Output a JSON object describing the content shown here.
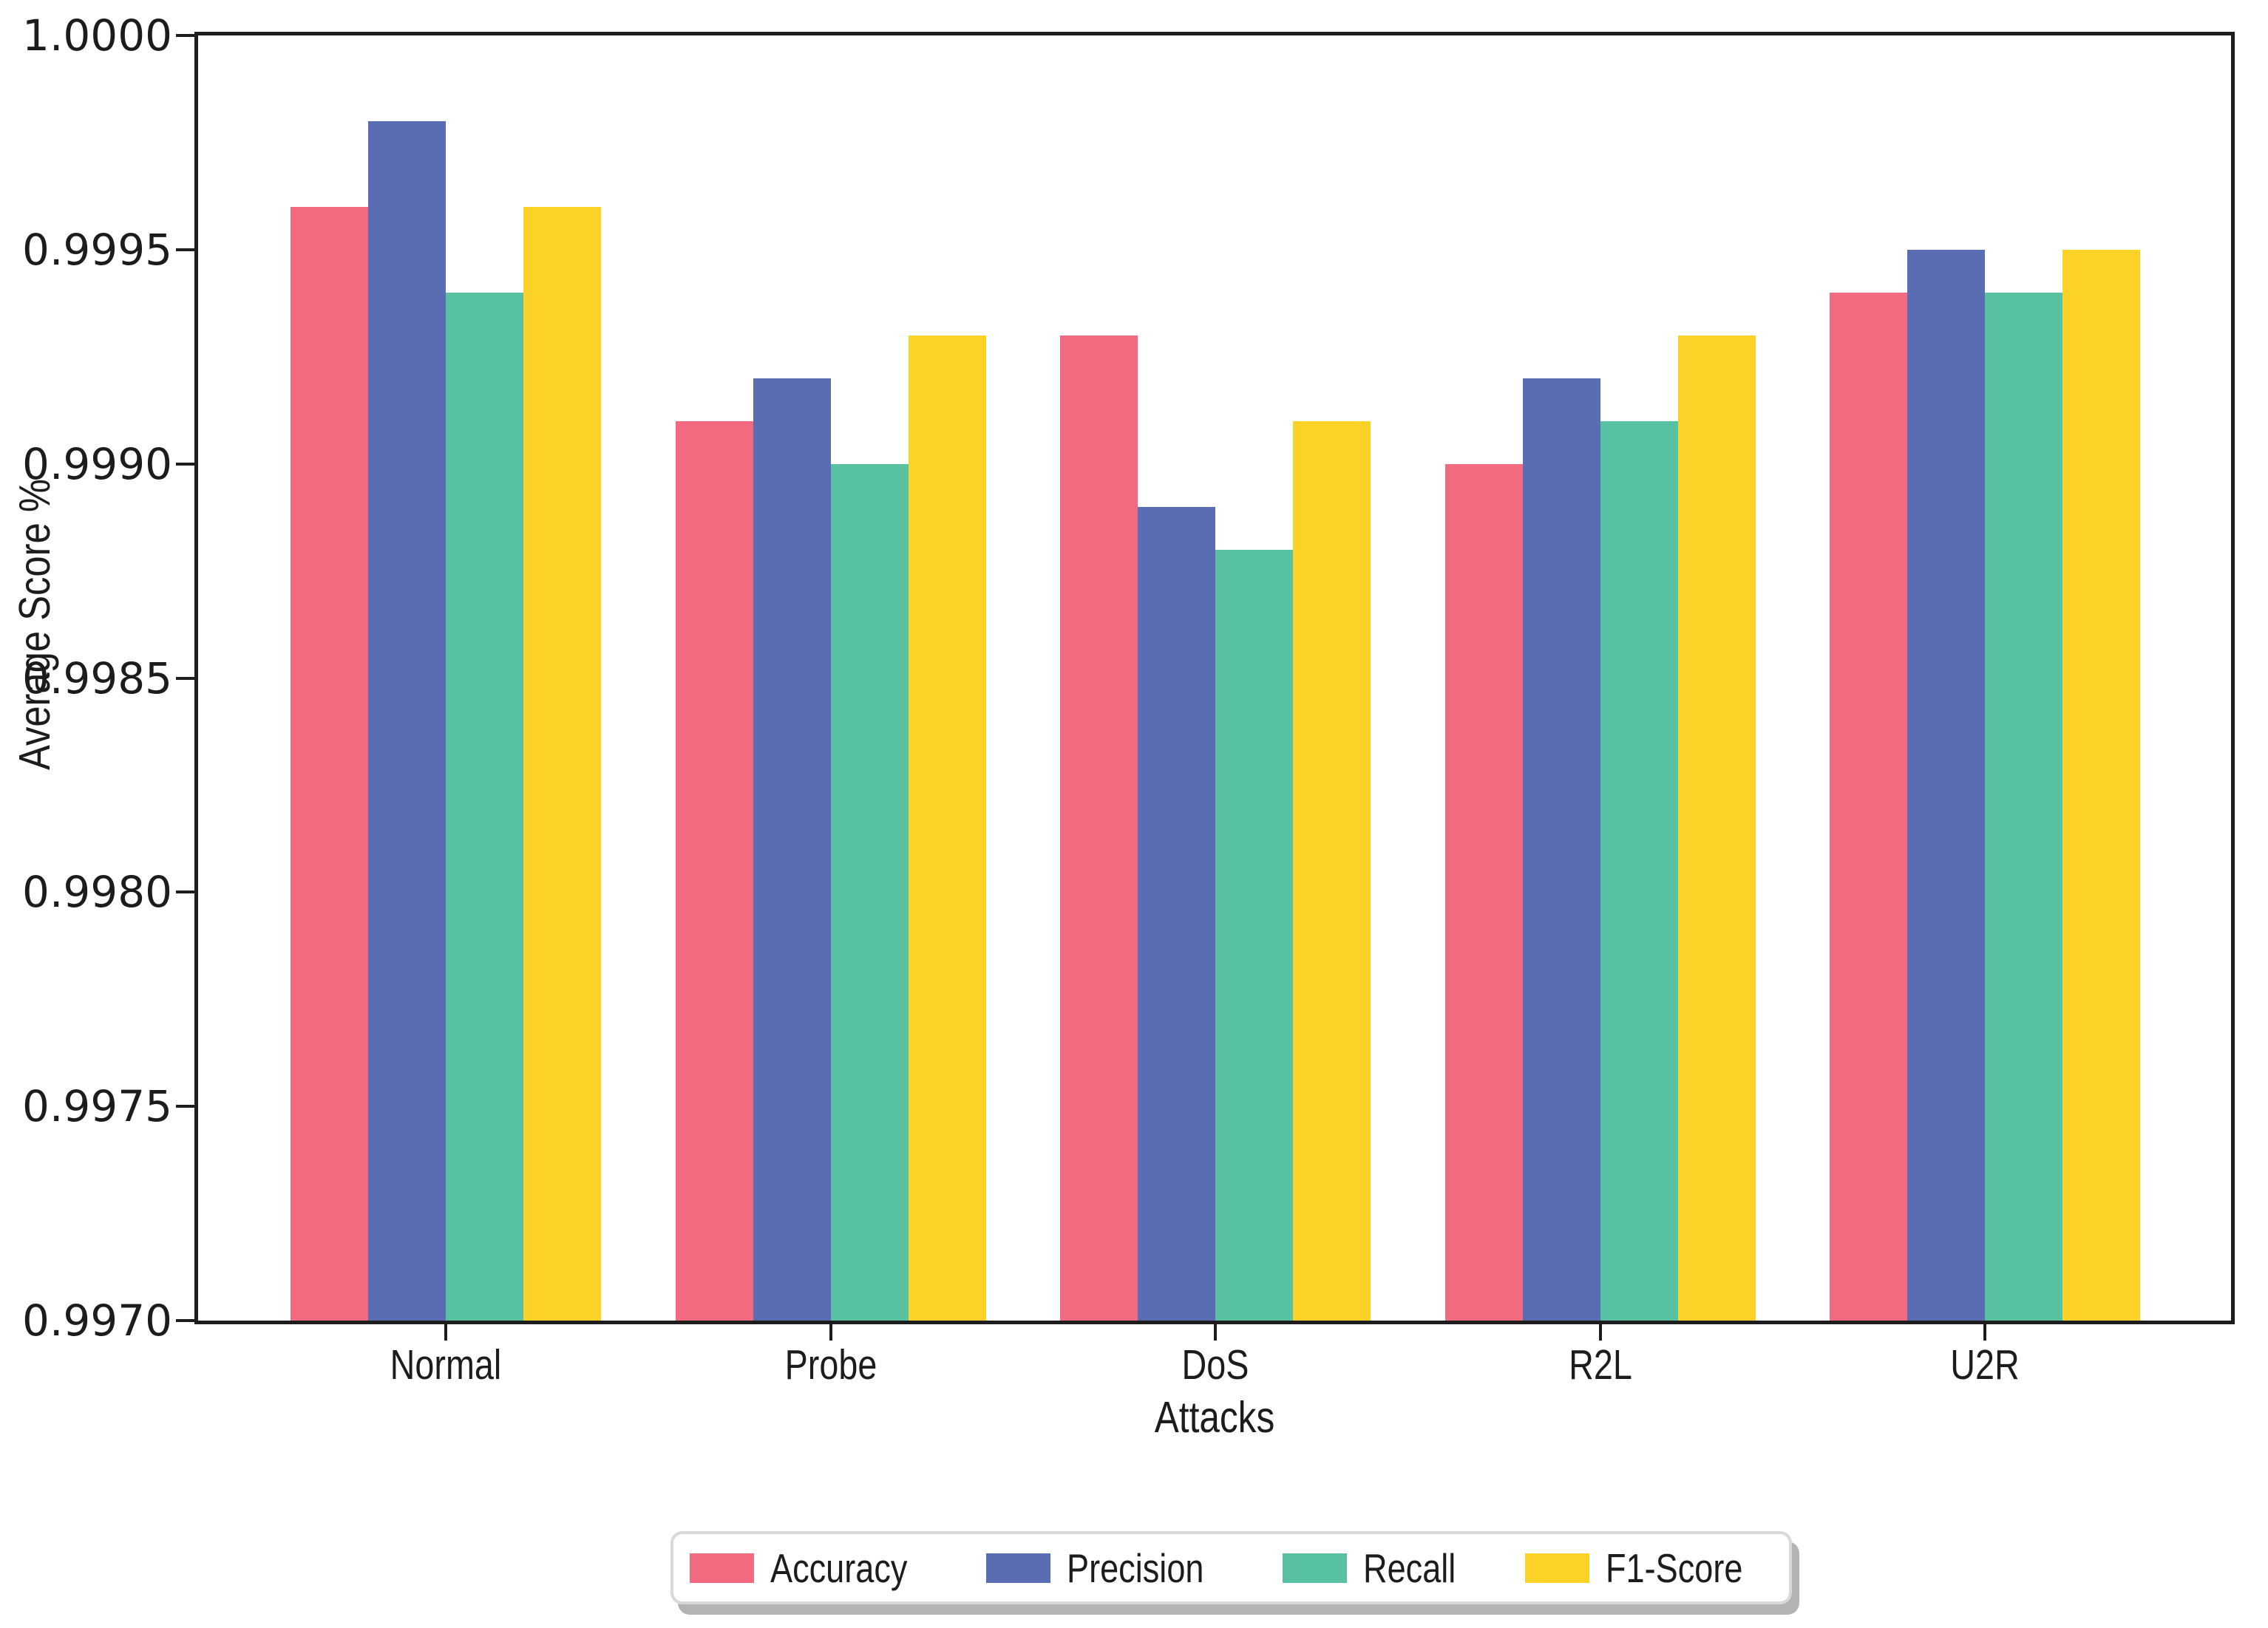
{
  "chart_data": {
    "type": "bar",
    "title": "",
    "categories": [
      "Normal",
      "Probe",
      "DoS",
      "R2L",
      "U2R"
    ],
    "series": [
      {
        "name": "Accuracy",
        "color": "#f16a80",
        "values": [
          0.9996,
          0.9991,
          0.9993,
          0.999,
          0.9994
        ]
      },
      {
        "name": "Precision",
        "color": "#5a6cb2",
        "values": [
          0.9998,
          0.9992,
          0.9989,
          0.9992,
          0.9995
        ]
      },
      {
        "name": "Recall",
        "color": "#58c1a2",
        "values": [
          0.9994,
          0.999,
          0.9988,
          0.9991,
          0.9994
        ]
      },
      {
        "name": "F1-Score",
        "color": "#fdd226",
        "values": [
          0.9996,
          0.9993,
          0.9991,
          0.9993,
          0.9995
        ]
      }
    ],
    "xlabel": "Attacks",
    "ylabel": "Average Score %",
    "ylim": [
      0.997,
      1.0
    ],
    "ytick_labels": [
      "1.0000",
      "0.9995",
      "0.9990",
      "0.9985",
      "0.9980",
      "0.9975",
      "0.9970"
    ],
    "grid": false,
    "legend_position": "bottom-center",
    "spine_color": "#1d1d1d",
    "legend_border_color": "#d9d9d9",
    "legend_shadow_color": "#b3b3b3"
  }
}
